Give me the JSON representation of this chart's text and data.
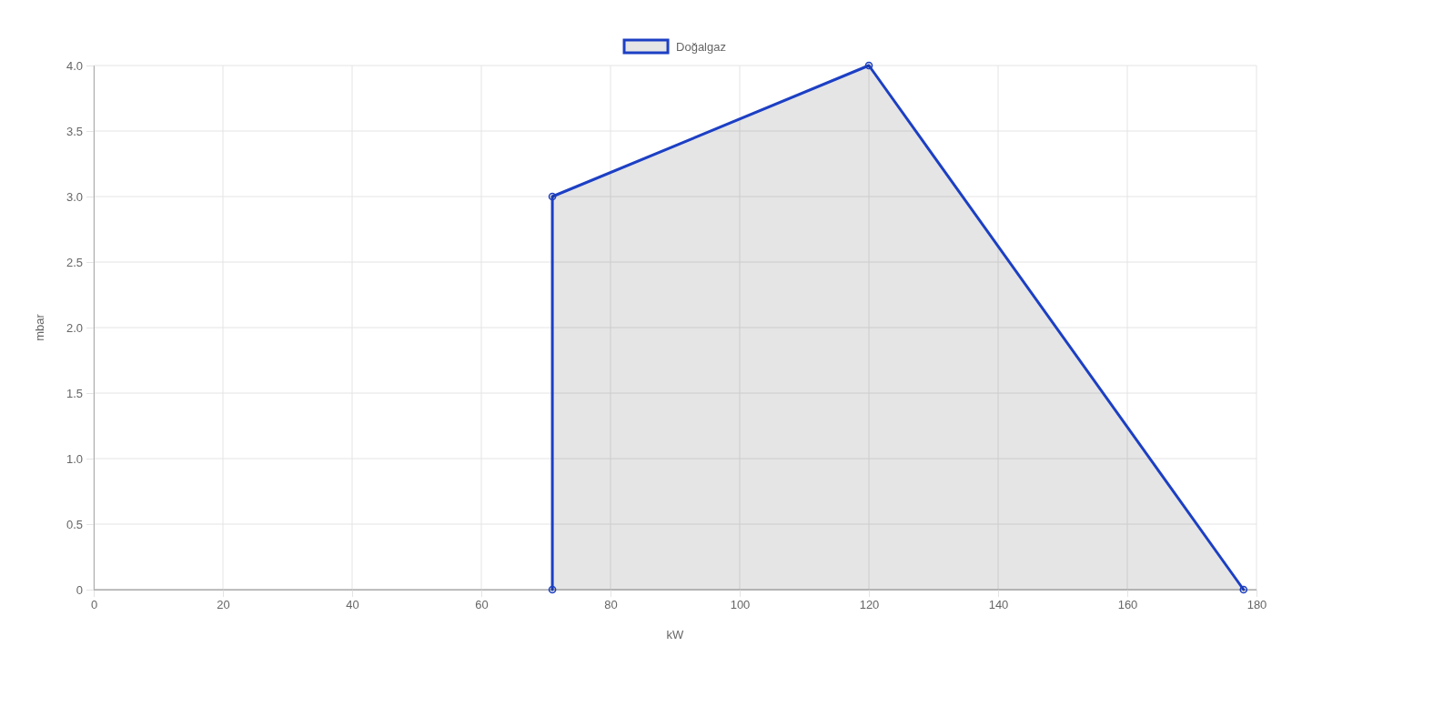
{
  "chart_data": {
    "type": "area",
    "xlabel": "kW",
    "ylabel": "mbar",
    "x": [
      71,
      71,
      120,
      178
    ],
    "series": [
      {
        "name": "Doğalgaz",
        "color": "#1c3fc4",
        "values": [
          0,
          3,
          4,
          0
        ]
      }
    ],
    "xlim": [
      0,
      180
    ],
    "xticks": [
      0,
      20,
      40,
      60,
      80,
      100,
      120,
      140,
      160,
      180
    ],
    "ylim": [
      0,
      4
    ],
    "yticks": [
      0,
      0.5,
      {
        "value": 1,
        "label": "1.0"
      },
      1.5,
      {
        "value": 2,
        "label": "2.0"
      },
      2.5,
      {
        "value": 3,
        "label": "3.0"
      },
      3.5,
      {
        "value": 4,
        "label": "4.0"
      }
    ],
    "grid": true,
    "legend": "top",
    "marker": "circle"
  }
}
